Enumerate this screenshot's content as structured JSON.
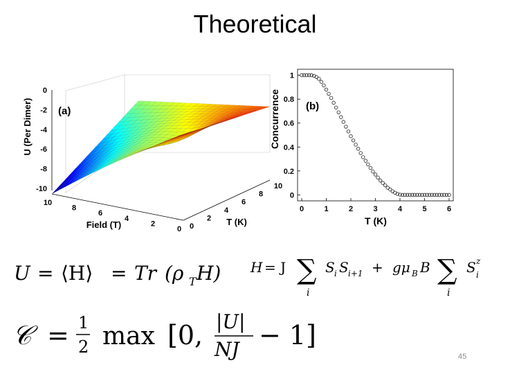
{
  "slide": {
    "title": "Theoretical",
    "page_number": "45"
  },
  "chart_data": [
    {
      "type": "surface",
      "panel_label": "(a)",
      "zlabel": "U (Per Dimer)",
      "xlabel": "Field (T)",
      "ylabel": "T (K)",
      "z_ticks": [
        "0",
        "-2",
        "-4",
        "-6",
        "-8",
        "-10"
      ],
      "field_ticks": [
        "10",
        "8",
        "6",
        "4",
        "2",
        "0"
      ],
      "t_ticks": [
        "0",
        "2",
        "4",
        "6",
        "8",
        "10"
      ],
      "zlim": [
        -10,
        0
      ],
      "field_range": [
        0,
        10
      ],
      "t_range": [
        0,
        10
      ],
      "colormap": "jet"
    },
    {
      "type": "scatter",
      "panel_label": "(b)",
      "xlabel": "T (K)",
      "ylabel": "Concurrence",
      "x_ticks": [
        "0",
        "1",
        "2",
        "3",
        "4",
        "5",
        "6"
      ],
      "y_ticks": [
        "0",
        "0.2",
        "0.4",
        "0.6",
        "0.8",
        "1"
      ],
      "xlim": [
        0,
        6
      ],
      "ylim": [
        -0.05,
        1.05
      ],
      "x": [
        0.0,
        0.1,
        0.2,
        0.3,
        0.4,
        0.5,
        0.6,
        0.7,
        0.8,
        0.9,
        1.0,
        1.1,
        1.2,
        1.3,
        1.4,
        1.5,
        1.6,
        1.7,
        1.8,
        1.9,
        2.0,
        2.1,
        2.2,
        2.3,
        2.4,
        2.5,
        2.6,
        2.7,
        2.8,
        2.9,
        3.0,
        3.1,
        3.2,
        3.3,
        3.4,
        3.5,
        3.6,
        3.7,
        3.8,
        3.9,
        4.0,
        4.1,
        4.2,
        4.3,
        4.4,
        4.5,
        4.6,
        4.7,
        4.8,
        4.9,
        5.0,
        5.1,
        5.2,
        5.3,
        5.4,
        5.5,
        5.6,
        5.7,
        5.8,
        5.9,
        6.0
      ],
      "y": [
        1.0,
        1.0,
        1.0,
        1.0,
        1.0,
        0.995,
        0.985,
        0.97,
        0.945,
        0.915,
        0.88,
        0.845,
        0.81,
        0.77,
        0.73,
        0.69,
        0.65,
        0.61,
        0.57,
        0.53,
        0.49,
        0.455,
        0.42,
        0.385,
        0.35,
        0.315,
        0.285,
        0.255,
        0.225,
        0.195,
        0.17,
        0.145,
        0.12,
        0.1,
        0.08,
        0.06,
        0.045,
        0.03,
        0.018,
        0.008,
        0.002,
        0.0,
        0.0,
        0.0,
        0.0,
        0.0,
        0.0,
        0.0,
        0.0,
        0.0,
        0.0,
        0.0,
        0.0,
        0.0,
        0.0,
        0.0,
        0.0,
        0.0,
        0.0,
        0.0,
        0.0
      ]
    }
  ],
  "equations": {
    "energy": {
      "lhs": "U",
      "eq1": "=",
      "expval": "⟨H⟩",
      "eq2": "=",
      "trace": "Tr",
      "rho": "(ρ",
      "rho_sub": "T",
      "rhs_end": "H)"
    },
    "hamiltonian": {
      "lhs": "H",
      "eq": "= J",
      "sum": "∑",
      "sum_index": "i",
      "term1": "S",
      "term1_sub_a": "i",
      "term1_b": "S",
      "term1_sub_b": "i+1",
      "plus": "+",
      "g": "gμ",
      "g_sub": "B",
      "B": "B",
      "sum2": "∑",
      "sum2_index": "i",
      "term2": "S",
      "term2_sup": "z",
      "term2_sub": "i"
    },
    "concurrence": {
      "lhs": "𝒞",
      "eq": "=",
      "frac_num": "1",
      "frac_den": "2",
      "max": "max",
      "bracket_open": "[0,",
      "abs_num": "|U|",
      "abs_den": "NJ",
      "minus": "− 1]"
    }
  }
}
